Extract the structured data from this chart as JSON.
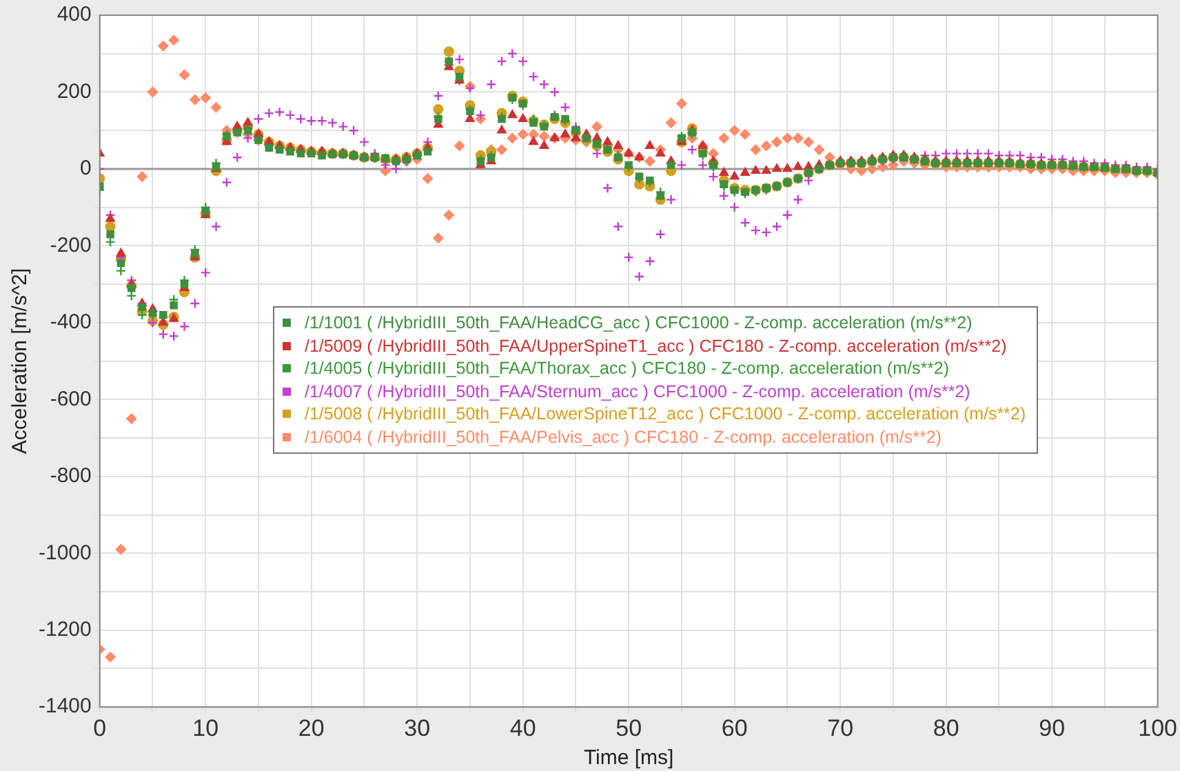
{
  "chart_data": {
    "type": "scatter",
    "xlabel": "Time [ms]",
    "ylabel": "Acceleration [m/s^2]",
    "x": [
      0,
      1,
      2,
      3,
      4,
      5,
      6,
      7,
      8,
      9,
      10,
      11,
      12,
      13,
      14,
      15,
      16,
      17,
      18,
      19,
      20,
      21,
      22,
      23,
      24,
      25,
      26,
      27,
      28,
      29,
      30,
      31,
      32,
      33,
      34,
      35,
      36,
      37,
      38,
      39,
      40,
      41,
      42,
      43,
      44,
      45,
      46,
      47,
      48,
      49,
      50,
      51,
      52,
      53,
      54,
      55,
      56,
      57,
      58,
      59,
      60,
      61,
      62,
      63,
      64,
      65,
      66,
      67,
      68,
      69,
      70,
      71,
      72,
      73,
      74,
      75,
      76,
      77,
      78,
      79,
      80,
      81,
      82,
      83,
      84,
      85,
      86,
      87,
      88,
      89,
      90,
      91,
      92,
      93,
      94,
      95,
      96,
      97,
      98,
      99,
      100
    ],
    "xlim": [
      0,
      100
    ],
    "xticks": [
      0,
      {
        "value": 5,
        "label": null
      },
      10,
      {
        "value": 15,
        "label": null
      },
      20,
      {
        "value": 25,
        "label": null
      },
      30,
      {
        "value": 35,
        "label": null
      },
      40,
      {
        "value": 45,
        "label": null
      },
      50,
      {
        "value": 55,
        "label": null
      },
      60,
      {
        "value": 65,
        "label": null
      },
      70,
      {
        "value": 75,
        "label": null
      },
      80,
      {
        "value": 85,
        "label": null
      },
      90,
      {
        "value": 95,
        "label": null
      },
      100
    ],
    "ylim": [
      -1400,
      400
    ],
    "yticks": [
      -1400,
      {
        "value": -1300,
        "label": null
      },
      -1200,
      {
        "value": -1100,
        "label": null
      },
      -1000,
      {
        "value": -900,
        "label": null
      },
      -800,
      {
        "value": -700,
        "label": null
      },
      -600,
      {
        "value": -500,
        "label": null
      },
      -400,
      {
        "value": -300,
        "label": null
      },
      -200,
      {
        "value": -100,
        "label": null
      },
      0,
      {
        "value": 100,
        "label": null
      },
      200,
      {
        "value": 300,
        "label": null
      },
      400
    ],
    "grid": true,
    "legend": "center",
    "ref_lines": [
      {
        "axis": "y",
        "value": 0,
        "color": "#999999"
      }
    ],
    "series": [
      {
        "name": "/1/1001 ( /HybridIII_50th_FAA/HeadCG_acc ) CFC1000 - Z-comp. acceleration (m/s**2)",
        "color": "#3f8f3f",
        "marker": "square",
        "values": [
          -45,
          -170,
          -245,
          -310,
          -360,
          -375,
          -380,
          -355,
          -300,
          -220,
          -110,
          5,
          85,
          95,
          100,
          75,
          55,
          50,
          45,
          40,
          40,
          35,
          38,
          38,
          35,
          30,
          30,
          28,
          20,
          25,
          35,
          45,
          130,
          280,
          240,
          150,
          20,
          30,
          130,
          185,
          170,
          120,
          110,
          135,
          130,
          100,
          80,
          65,
          50,
          30,
          10,
          -20,
          -30,
          -70,
          10,
          80,
          95,
          40,
          10,
          -40,
          -55,
          -60,
          -55,
          -50,
          -45,
          -35,
          -25,
          -10,
          0,
          10,
          15,
          15,
          15,
          20,
          25,
          30,
          30,
          25,
          20,
          15,
          15,
          15,
          15,
          15,
          15,
          15,
          15,
          12,
          12,
          10,
          10,
          10,
          8,
          5,
          5,
          3,
          0,
          0,
          -5,
          -5,
          -10
        ]
      },
      {
        "name": "/1/5009 ( /HybridIII_50th_FAA/UpperSpineT1_acc ) CFC180 - Z-comp. acceleration (m/s**2)",
        "color": "#cc3333",
        "marker": "triangle",
        "values": [
          40,
          -130,
          -220,
          -300,
          -350,
          -365,
          -400,
          -390,
          -310,
          -230,
          -120,
          0,
          70,
          110,
          120,
          90,
          70,
          60,
          55,
          50,
          45,
          45,
          40,
          40,
          35,
          30,
          30,
          25,
          25,
          30,
          40,
          55,
          115,
          265,
          230,
          130,
          10,
          20,
          100,
          140,
          130,
          70,
          60,
          80,
          90,
          80,
          90,
          80,
          70,
          60,
          40,
          30,
          60,
          40,
          20,
          70,
          100,
          60,
          20,
          -10,
          -20,
          -10,
          -5,
          -5,
          0,
          0,
          5,
          5,
          10,
          10,
          20,
          20,
          20,
          25,
          30,
          35,
          35,
          30,
          25,
          20,
          20,
          20,
          20,
          20,
          20,
          20,
          18,
          15,
          15,
          12,
          12,
          10,
          8,
          5,
          5,
          3,
          0,
          0,
          -5,
          -5,
          -10
        ]
      },
      {
        "name": "/1/4005 ( /HybridIII_50th_FAA/Thorax_acc ) CFC180 - Z-comp. acceleration (m/s**2)",
        "color": "#3a9a3a",
        "marker": "cross",
        "values": [
          -55,
          -190,
          -265,
          -330,
          -380,
          -380,
          -385,
          -340,
          -290,
          -210,
          -100,
          15,
          90,
          100,
          105,
          80,
          60,
          55,
          50,
          45,
          42,
          40,
          40,
          38,
          35,
          30,
          28,
          25,
          20,
          25,
          35,
          50,
          135,
          270,
          230,
          155,
          25,
          35,
          135,
          180,
          165,
          130,
          115,
          140,
          125,
          105,
          85,
          70,
          55,
          35,
          5,
          -25,
          -35,
          -60,
          15,
          85,
          90,
          35,
          5,
          -45,
          -60,
          -65,
          -60,
          -55,
          -45,
          -35,
          -25,
          -10,
          0,
          10,
          15,
          15,
          15,
          20,
          25,
          30,
          30,
          25,
          20,
          15,
          15,
          15,
          15,
          15,
          15,
          15,
          15,
          12,
          12,
          10,
          10,
          10,
          8,
          5,
          5,
          3,
          0,
          0,
          -5,
          -5,
          -10
        ]
      },
      {
        "name": "/1/4007 ( /HybridIII_50th_FAA/Sternum_acc ) CFC1000 - Z-comp. acceleration (m/s**2)",
        "color": "#c040d0",
        "marker": "cross",
        "values": [
          0,
          -120,
          -230,
          -290,
          -350,
          -400,
          -430,
          -435,
          -410,
          -350,
          -270,
          -150,
          -35,
          30,
          80,
          130,
          145,
          148,
          140,
          130,
          125,
          125,
          120,
          110,
          100,
          70,
          40,
          10,
          0,
          20,
          40,
          70,
          190,
          280,
          285,
          210,
          140,
          220,
          280,
          300,
          280,
          240,
          220,
          200,
          160,
          110,
          80,
          40,
          -50,
          -150,
          -230,
          -280,
          -240,
          -170,
          -80,
          10,
          50,
          10,
          -20,
          -70,
          -100,
          -140,
          -160,
          -165,
          -150,
          -120,
          -80,
          -30,
          0,
          10,
          15,
          20,
          20,
          20,
          20,
          25,
          30,
          30,
          35,
          35,
          40,
          40,
          40,
          40,
          40,
          35,
          35,
          35,
          30,
          30,
          25,
          25,
          20,
          20,
          15,
          15,
          10,
          10,
          5,
          5,
          0
        ]
      },
      {
        "name": "/1/5008 ( /HybridIII_50th_FAA/LowerSpineT12_acc ) CFC1000 - Z-comp. acceleration (m/s**2)",
        "color": "#d4a020",
        "marker": "circle",
        "values": [
          -25,
          -150,
          -235,
          -305,
          -370,
          -395,
          -405,
          -385,
          -320,
          -230,
          -115,
          -5,
          75,
          100,
          110,
          90,
          70,
          60,
          55,
          50,
          45,
          42,
          40,
          40,
          35,
          30,
          30,
          25,
          25,
          30,
          40,
          55,
          155,
          305,
          255,
          165,
          35,
          45,
          145,
          190,
          175,
          125,
          115,
          130,
          120,
          95,
          75,
          60,
          45,
          25,
          -5,
          -40,
          -45,
          -80,
          -5,
          70,
          105,
          45,
          15,
          -30,
          -50,
          -55,
          -55,
          -50,
          -45,
          -35,
          -25,
          -10,
          0,
          10,
          15,
          15,
          15,
          20,
          25,
          30,
          30,
          25,
          20,
          15,
          15,
          15,
          15,
          15,
          15,
          15,
          15,
          12,
          12,
          10,
          10,
          10,
          8,
          5,
          5,
          3,
          0,
          0,
          -5,
          -5,
          -10
        ]
      },
      {
        "name": "/1/6004 ( /HybridIII_50th_FAA/Pelvis_acc ) CFC180 - Z-comp. acceleration (m/s**2)",
        "color": "#ff8c69",
        "marker": "diamond",
        "values": [
          -1250,
          -1270,
          -990,
          -650,
          -20,
          200,
          320,
          335,
          245,
          180,
          185,
          160,
          100,
          95,
          90,
          75,
          65,
          60,
          55,
          50,
          45,
          45,
          40,
          40,
          35,
          30,
          30,
          -5,
          20,
          20,
          25,
          -25,
          -180,
          -120,
          60,
          215,
          130,
          50,
          50,
          80,
          90,
          90,
          85,
          80,
          80,
          75,
          70,
          110,
          60,
          50,
          40,
          30,
          20,
          50,
          120,
          170,
          80,
          60,
          40,
          80,
          100,
          90,
          50,
          60,
          70,
          80,
          80,
          70,
          50,
          30,
          10,
          0,
          -5,
          0,
          5,
          10,
          20,
          15,
          10,
          10,
          5,
          5,
          5,
          5,
          5,
          5,
          5,
          5,
          0,
          0,
          0,
          0,
          -5,
          -5,
          -5,
          -5,
          -10,
          -10,
          -10,
          -10,
          -15
        ]
      }
    ]
  }
}
